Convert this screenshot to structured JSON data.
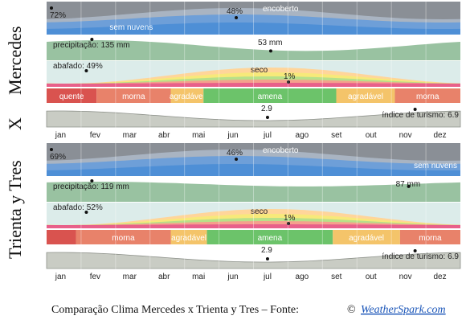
{
  "locations": [
    "Mercedes",
    "X",
    "Trienta y Tres"
  ],
  "months": [
    "jan",
    "fev",
    "mar",
    "abr",
    "mai",
    "jun",
    "jul",
    "ago",
    "set",
    "out",
    "nov",
    "dez"
  ],
  "caption": {
    "text": "Comparação Clima Mercedes x Trienta y Tres – Fonte:",
    "copyright": "©",
    "link": "WeatherSpark.com"
  },
  "colors": {
    "cloud_dark": "#8a8f96",
    "cloud_mid": "#a9b4c2",
    "cloud_light": "#6e9fd8",
    "cloud_clear": "#4e8fd6",
    "precip": "#7fb38a",
    "muggy_bg": "#dcecea",
    "season_quente": "#d9534f",
    "season_morna": "#e8826a",
    "season_agradavel": "#f4c46a",
    "season_amena": "#6cc36a",
    "tourism": "#c9ccc4"
  },
  "chart_data": [
    {
      "type": "area",
      "location": "Mercedes",
      "cloud_cover": {
        "labels": {
          "overcast": "encoberto",
          "clear": "sem nuvens"
        },
        "max_percent": 72,
        "max_label": "72%",
        "min_percent": 48,
        "min_label": "48%",
        "max_month": "jan",
        "min_month": "jun"
      },
      "precipitation": {
        "label": "precipitação: 135 mm",
        "max_mm": 135,
        "max_month": "fev",
        "min_mm": 53,
        "min_label": "53 mm",
        "min_month": "jul"
      },
      "muggy": {
        "label": "abafado: 49%",
        "max_percent": 49,
        "max_month": "jan",
        "dry_label": "seco",
        "min_percent": 1,
        "min_label": "1%",
        "min_month": "jul"
      },
      "seasons": [
        {
          "label": "quente",
          "color": "#d9534f",
          "start_month": 0.0,
          "end_month": 1.45
        },
        {
          "label": "morna",
          "color": "#e8826a",
          "start_month": 1.45,
          "end_month": 3.6
        },
        {
          "label": "agradável",
          "color": "#f4c46a",
          "start_month": 3.6,
          "end_month": 4.55
        },
        {
          "label": "amena",
          "color": "#6cc36a",
          "start_month": 4.55,
          "end_month": 8.4
        },
        {
          "label": "agradável",
          "color": "#f4c46a",
          "start_month": 8.4,
          "end_month": 10.1
        },
        {
          "label": "morna",
          "color": "#e8826a",
          "start_month": 10.1,
          "end_month": 12.0
        }
      ],
      "tourism": {
        "max_label": "índice de turismo: 6.9",
        "max_score": 6.9,
        "max_month": "nov",
        "min_score": 2.9,
        "min_label": "2.9",
        "min_month": "jul"
      }
    },
    {
      "type": "area",
      "location": "Trienta y Tres",
      "cloud_cover": {
        "labels": {
          "overcast": "encoberto",
          "clear": "sem nuvens"
        },
        "max_percent": 69,
        "max_label": "69%",
        "min_percent": 46,
        "min_label": "46%",
        "max_month": "jan",
        "min_month": "jun"
      },
      "precipitation": {
        "label": "precipitação: 119 mm",
        "max_mm": 119,
        "max_month": "fev",
        "min_mm": 87,
        "min_label": "87 mm",
        "min_month": "nov"
      },
      "muggy": {
        "label": "abafado: 52%",
        "max_percent": 52,
        "max_month": "jan",
        "dry_label": "seco",
        "min_percent": 1,
        "min_label": "1%",
        "min_month": "jul"
      },
      "seasons": [
        {
          "label": "",
          "color": "#d9534f",
          "start_month": 0.0,
          "end_month": 0.85
        },
        {
          "label": "morna",
          "color": "#e8826a",
          "start_month": 0.85,
          "end_month": 3.6
        },
        {
          "label": "agradável",
          "color": "#f4c46a",
          "start_month": 3.6,
          "end_month": 4.65
        },
        {
          "label": "amena",
          "color": "#6cc36a",
          "start_month": 4.65,
          "end_month": 8.3
        },
        {
          "label": "agradável",
          "color": "#f4c46a",
          "start_month": 8.3,
          "end_month": 10.25
        },
        {
          "label": "morna",
          "color": "#e8826a",
          "start_month": 10.25,
          "end_month": 12.0
        }
      ],
      "tourism": {
        "max_label": "índice de turismo: 6.9",
        "max_score": 6.9,
        "max_month": "nov",
        "min_score": 2.9,
        "min_label": "2.9",
        "min_month": "jul"
      }
    }
  ]
}
